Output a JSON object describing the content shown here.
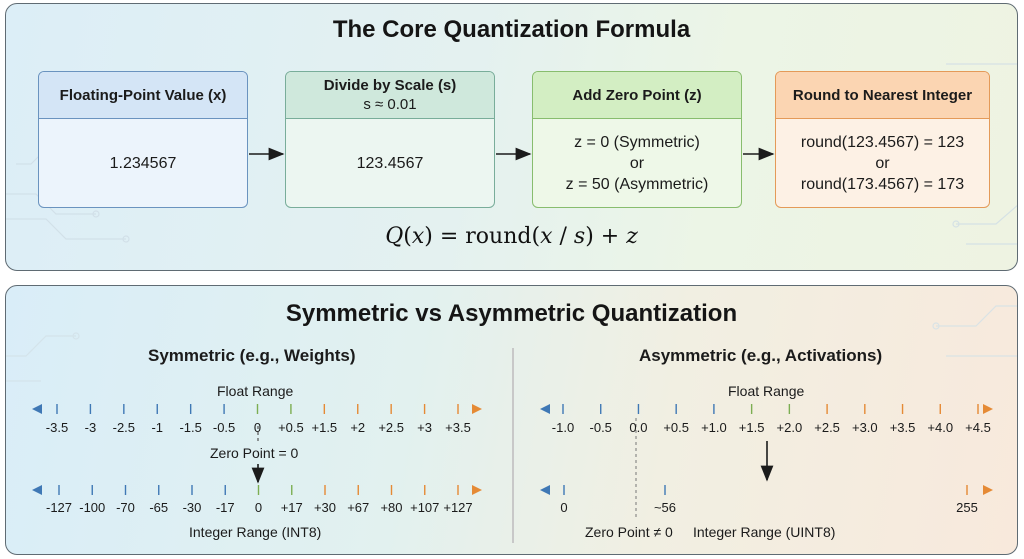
{
  "top_panel": {
    "title": "The Core Quantization Formula",
    "steps": [
      {
        "title": "Floating-Point Value (x)",
        "subtitle": "",
        "lines": [
          "1.234567"
        ]
      },
      {
        "title": "Divide by Scale (s)",
        "subtitle": "s ≈ 0.01",
        "lines": [
          "123.4567"
        ]
      },
      {
        "title": "Add Zero Point (z)",
        "subtitle": "",
        "lines": [
          "z = 0 (Symmetric)",
          "or",
          "z = 50 (Asymmetric)"
        ]
      },
      {
        "title": "Round to Nearest Integer",
        "subtitle": "",
        "lines": [
          "round(123.4567) = 123",
          "or",
          "round(173.4567) = 173"
        ]
      }
    ],
    "formula": {
      "q": "Q",
      "x": "x",
      "eq": "=",
      "round": "round",
      "s": "s",
      "plus": "+",
      "z": "z"
    }
  },
  "bottom_panel": {
    "title": "Symmetric vs Asymmetric Quantization",
    "symmetric": {
      "title": "Symmetric (e.g., Weights)",
      "float_label": "Float Range",
      "float_ticks": [
        "-3.5",
        "-3",
        "-2.5",
        "-1",
        "-1.5",
        "-0.5",
        "0",
        "+0.5",
        "+1.5",
        "+2",
        "+2.5",
        "+3",
        "+3.5"
      ],
      "zero_label": "Zero Point = 0",
      "int_ticks": [
        "-127",
        "-100",
        "-70",
        "-65",
        "-30",
        "-17",
        "0",
        "+17",
        "+30",
        "+67",
        "+80",
        "+107",
        "+127"
      ],
      "int_label": "Integer Range (INT8)"
    },
    "asymmetric": {
      "title": "Asymmetric (e.g., Activations)",
      "float_label": "Float Range",
      "float_ticks": [
        "-1.0",
        "-0.5",
        "0.0",
        "+0.5",
        "+1.0",
        "+1.5",
        "+2.0",
        "+2.5",
        "+3.0",
        "+3.5",
        "+4.0",
        "+4.5"
      ],
      "int_ticks": [
        "0",
        "~56",
        "255"
      ],
      "zero_label": "Zero Point ≠ 0",
      "int_label": "Integer Range (UINT8)"
    }
  },
  "colors": {
    "blue": "#3f78b5",
    "green": "#7cae52",
    "orange": "#e58a35"
  }
}
